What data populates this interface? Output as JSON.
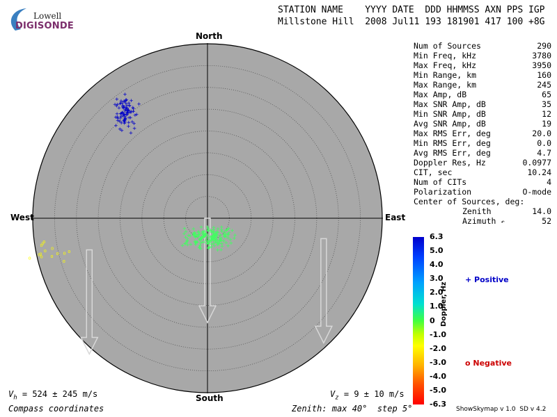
{
  "logo": {
    "top": "Lowell",
    "bottom": "DIGISONDE"
  },
  "header": {
    "line1": "STATION NAME    YYYY DATE  DDD HHMMSS AXN PPS IGP",
    "line2": "Millstone Hill  2008 Jul11 193 181901 417 100 +8G"
  },
  "compass": {
    "north": "North",
    "south": "South",
    "east": "East",
    "west": "West"
  },
  "stats": [
    {
      "label": "Num of Sources",
      "value": "290"
    },
    {
      "label": "Min Freq, kHz",
      "value": "3780"
    },
    {
      "label": "Max Freq, kHz",
      "value": "3950"
    },
    {
      "label": "Min Range, km",
      "value": "160"
    },
    {
      "label": "Max Range, km",
      "value": "245"
    },
    {
      "label": "Max Amp, dB",
      "value": "65"
    },
    {
      "label": "Max SNR Amp, dB",
      "value": "35"
    },
    {
      "label": "Min SNR Amp, dB",
      "value": "12"
    },
    {
      "label": "Avg SNR Amp, dB",
      "value": "19"
    },
    {
      "label": "Max RMS Err, deg",
      "value": "20.0"
    },
    {
      "label": "Min RMS Err, deg",
      "value": "0.0"
    },
    {
      "label": "Avg RMS Err, deg",
      "value": "4.7"
    },
    {
      "label": "Doppler Res, Hz",
      "value": "0.0977"
    },
    {
      "label": "CIT, sec",
      "value": "10.24"
    },
    {
      "label": "Num of CITs",
      "value": "4"
    },
    {
      "label": "Polarization",
      "value": "O-mode"
    }
  ],
  "center": {
    "title": "Center of Sources, deg:",
    "zenith_label": "Zenith",
    "zenith_value": "14.0",
    "azimuth_label": "Azimuth",
    "azimuth_value": "52"
  },
  "colorbar": {
    "ticks": [
      "6.3",
      "5.0",
      "4.0",
      "3.0",
      "2.0",
      "1.0",
      "0",
      "-1.0",
      "-2.0",
      "-3.0",
      "-4.0",
      "-5.0",
      "-6.3"
    ],
    "label": "Doppler, Hz"
  },
  "legend": {
    "positive": "+ Positive",
    "negative": "o Negative"
  },
  "bottom": {
    "vh_prefix": "V",
    "vh_sub": "h",
    "vh_text": " = 524 ± 245 m/s",
    "vz_prefix": "V",
    "vz_sub": "z",
    "vz_text": " = 9 ± 10 m/s",
    "coords": "Compass coordinates",
    "zenith_info": "Zenith: max 40°  step 5°"
  },
  "version": "ShowSkymap v 1.0  SD v 4.2",
  "colors": {
    "disk": "#a8a8a8",
    "positive": "#0000c8",
    "negative": "#cc0000",
    "green_sources": "#40ff60",
    "yellow_sources": "#ffff00"
  },
  "chart_data": {
    "type": "scatter",
    "coordinate_system": "polar compass (zenith angle, azimuth)",
    "zenith_max_deg": 40,
    "zenith_step_deg": 5,
    "clusters": [
      {
        "doppler_sign": "positive",
        "color": "#0000c8",
        "marker": "+",
        "center_zenith_deg": 30,
        "center_azimuth_deg": 322,
        "approx_count": 90
      },
      {
        "doppler_sign": "positive",
        "color": "#40ff60",
        "marker": "+",
        "center_zenith_deg": 5,
        "center_azimuth_deg": 175,
        "approx_count": 170
      },
      {
        "doppler_sign": "negative",
        "color": "#ffff00",
        "marker": "o",
        "center_zenith_deg": 37,
        "center_azimuth_deg": 257,
        "approx_count": 14
      }
    ],
    "velocity_arrows": [
      {
        "start_zenith_deg": 28,
        "start_azimuth_deg": 255,
        "direction": "south"
      },
      {
        "start_zenith_deg": 0,
        "start_azimuth_deg": 180,
        "direction": "south"
      },
      {
        "start_zenith_deg": 27,
        "start_azimuth_deg": 100,
        "direction": "south"
      }
    ]
  }
}
